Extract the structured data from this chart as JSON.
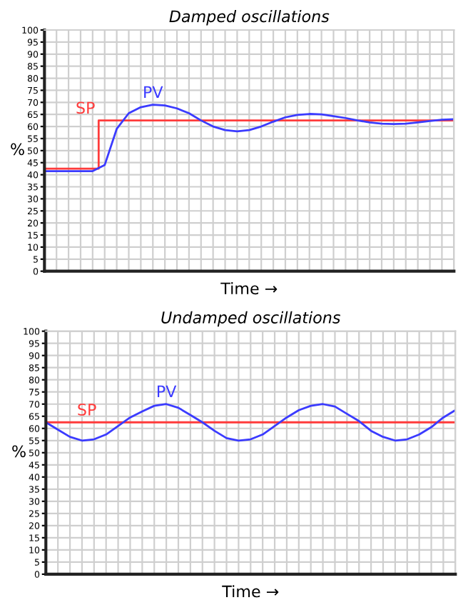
{
  "chart_data": [
    {
      "type": "line",
      "title": "Damped oscillations",
      "xlabel": "Time →",
      "ylabel": "%",
      "categories": [
        null,
        null,
        null,
        null,
        null,
        null,
        null,
        null,
        null,
        null,
        null,
        null,
        null,
        null,
        null,
        null,
        null,
        null,
        null,
        null,
        null,
        null,
        null,
        null,
        null,
        null,
        null,
        null,
        null,
        null,
        null,
        null,
        null,
        null,
        null
      ],
      "ylim": [
        0,
        100
      ],
      "yticks": [
        0,
        5,
        10,
        15,
        20,
        25,
        30,
        35,
        40,
        45,
        50,
        55,
        60,
        65,
        70,
        75,
        80,
        85,
        90,
        95,
        100
      ],
      "grid": true,
      "line_style": "solid",
      "series": [
        {
          "name": "SP",
          "type": "step",
          "color": "#ff3b3b",
          "values": [
            42.5,
            42.5,
            42.5,
            42.5,
            42.5,
            62.5,
            62.5,
            62.5,
            62.5,
            62.5,
            62.5,
            62.5,
            62.5,
            62.5,
            62.5,
            62.5,
            62.5,
            62.5,
            62.5,
            62.5,
            62.5,
            62.5,
            62.5,
            62.5,
            62.5,
            62.5,
            62.5,
            62.5,
            62.5,
            62.5,
            62.5,
            62.5,
            62.5,
            62.5,
            62.5
          ]
        },
        {
          "name": "PV",
          "color": "#3b3bff",
          "values": [
            41.5,
            41.5,
            41.5,
            41.5,
            41.5,
            44,
            59,
            65.5,
            68,
            69,
            68.7,
            67.5,
            65.5,
            62.5,
            60,
            58.5,
            58,
            58.5,
            60,
            62,
            63.8,
            64.8,
            65.2,
            65,
            64.3,
            63.5,
            62.5,
            61.7,
            61.2,
            61,
            61.2,
            61.7,
            62.3,
            62.8,
            63
          ]
        }
      ]
    },
    {
      "type": "line",
      "title": "Undamped oscillations",
      "xlabel": "Time →",
      "ylabel": "%",
      "categories": [
        null,
        null,
        null,
        null,
        null,
        null,
        null,
        null,
        null,
        null,
        null,
        null,
        null,
        null,
        null,
        null,
        null,
        null,
        null,
        null,
        null,
        null,
        null,
        null,
        null,
        null,
        null,
        null,
        null,
        null,
        null,
        null,
        null,
        null,
        null
      ],
      "ylim": [
        0,
        100
      ],
      "yticks": [
        0,
        5,
        10,
        15,
        20,
        25,
        30,
        35,
        40,
        45,
        50,
        55,
        60,
        65,
        70,
        75,
        80,
        85,
        90,
        95,
        100
      ],
      "grid": true,
      "line_style": "solid",
      "series": [
        {
          "name": "SP",
          "color": "#ff3b3b",
          "values": [
            62.5,
            62.5,
            62.5,
            62.5,
            62.5,
            62.5,
            62.5,
            62.5,
            62.5,
            62.5,
            62.5,
            62.5,
            62.5,
            62.5,
            62.5,
            62.5,
            62.5,
            62.5,
            62.5,
            62.5,
            62.5,
            62.5,
            62.5,
            62.5,
            62.5,
            62.5,
            62.5,
            62.5,
            62.5,
            62.5,
            62.5,
            62.5,
            62.5,
            62.5,
            62.5
          ]
        },
        {
          "name": "PV",
          "color": "#3b3bff",
          "values": [
            62.5,
            59.5,
            56.5,
            55,
            55.5,
            57.5,
            61,
            64.5,
            67,
            69.3,
            70,
            68.5,
            65.5,
            62.5,
            59,
            56,
            55,
            55.5,
            57.5,
            61,
            64.5,
            67.5,
            69.3,
            70,
            69,
            66,
            63,
            59,
            56.5,
            55,
            55.5,
            57.5,
            60.5,
            64.5,
            67.5
          ]
        }
      ]
    }
  ]
}
